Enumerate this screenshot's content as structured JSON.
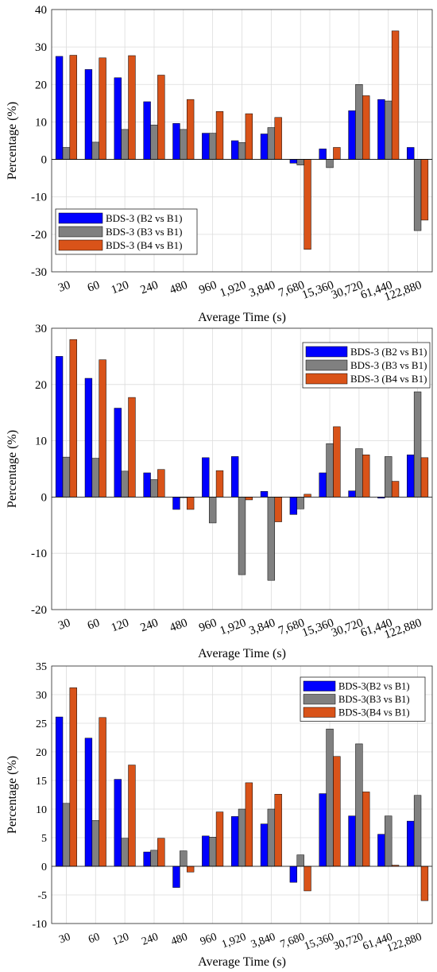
{
  "colors": {
    "series_blue": "#0000ff",
    "series_gray": "#808080",
    "series_orange": "#d95319",
    "grid": "#dcdcdc",
    "frame": "#262626"
  },
  "chart_data": [
    {
      "type": "bar",
      "xlabel": "Average Time (s)",
      "ylabel": "Percentage (%)",
      "ylim": [
        -30,
        40
      ],
      "yticks": [
        -30,
        -20,
        -10,
        0,
        10,
        20,
        30,
        40
      ],
      "grid": true,
      "legend_position": "lower-left",
      "categories": [
        "30",
        "60",
        "120",
        "240",
        "480",
        "960",
        "1,920",
        "3,840",
        "7,680",
        "15,360",
        "30,720",
        "61,440",
        "122,880"
      ],
      "series": [
        {
          "name": "BDS-3 (B2 vs B1)",
          "color": "#0000ff",
          "values": [
            27.5,
            24.0,
            21.8,
            15.4,
            9.6,
            7.0,
            5.0,
            6.8,
            -1.0,
            2.8,
            13.0,
            16.0,
            3.2
          ]
        },
        {
          "name": "BDS-3 (B3 vs B1)",
          "color": "#808080",
          "values": [
            3.2,
            4.6,
            8.0,
            9.2,
            8.0,
            7.0,
            4.5,
            8.5,
            -1.5,
            -2.2,
            20.0,
            15.6,
            -19.0
          ]
        },
        {
          "name": "BDS-3 (B4 vs B1)",
          "color": "#d95319",
          "values": [
            27.8,
            27.1,
            27.7,
            22.5,
            16.0,
            12.8,
            12.2,
            11.2,
            -24.0,
            3.2,
            17.0,
            34.3,
            -16.2
          ]
        }
      ]
    },
    {
      "type": "bar",
      "xlabel": "Average Time (s)",
      "ylabel": "Percentage (%)",
      "ylim": [
        -20,
        30
      ],
      "yticks": [
        -20,
        -10,
        0,
        10,
        20,
        30
      ],
      "grid": true,
      "legend_position": "top-right",
      "categories": [
        "30",
        "60",
        "120",
        "240",
        "480",
        "960",
        "1,920",
        "3,840",
        "7,680",
        "15,360",
        "30,720",
        "61,440",
        "122,880"
      ],
      "series": [
        {
          "name": "BDS-3 (B2 vs B1)",
          "color": "#0000ff",
          "values": [
            25.0,
            21.1,
            15.8,
            4.3,
            -2.2,
            7.0,
            7.2,
            1.0,
            -3.1,
            4.3,
            1.1,
            -0.2,
            7.5
          ]
        },
        {
          "name": "BDS-3 (B3 vs B1)",
          "color": "#808080",
          "values": [
            7.1,
            6.9,
            4.6,
            3.1,
            -0.1,
            -4.6,
            -13.8,
            -14.8,
            -2.1,
            9.5,
            8.6,
            7.2,
            18.7
          ]
        },
        {
          "name": "BDS-3 (B4 vs B1)",
          "color": "#d95319",
          "values": [
            28.0,
            24.4,
            17.7,
            4.9,
            -2.2,
            4.7,
            -0.5,
            -4.4,
            0.5,
            12.5,
            7.5,
            2.8,
            7.0
          ]
        }
      ]
    },
    {
      "type": "bar",
      "xlabel": "Average Time (s)",
      "ylabel": "Percentage (%)",
      "ylim": [
        -10,
        35
      ],
      "yticks": [
        -10,
        -5,
        0,
        5,
        10,
        15,
        20,
        25,
        30,
        35
      ],
      "grid": true,
      "legend_position": "top-right",
      "categories": [
        "30",
        "60",
        "120",
        "240",
        "480",
        "960",
        "1,920",
        "3,840",
        "7,680",
        "15,360",
        "30,720",
        "61,440",
        "122,880"
      ],
      "series": [
        {
          "name": "BDS-3(B2 vs B1)",
          "color": "#0000ff",
          "values": [
            26.1,
            22.4,
            15.2,
            2.5,
            -3.7,
            5.3,
            8.7,
            7.4,
            -2.8,
            12.7,
            8.8,
            5.6,
            7.9
          ]
        },
        {
          "name": "BDS-3(B3 vs B1)",
          "color": "#808080",
          "values": [
            11.0,
            8.0,
            4.9,
            2.8,
            2.7,
            5.1,
            10.0,
            10.0,
            2.0,
            24.0,
            21.4,
            8.8,
            12.4
          ]
        },
        {
          "name": "BDS-3(B4 vs B1)",
          "color": "#d95319",
          "values": [
            31.2,
            26.0,
            17.7,
            4.9,
            -1.0,
            9.5,
            14.6,
            12.6,
            -4.3,
            19.2,
            13.0,
            0.2,
            -6.0
          ]
        }
      ]
    }
  ]
}
